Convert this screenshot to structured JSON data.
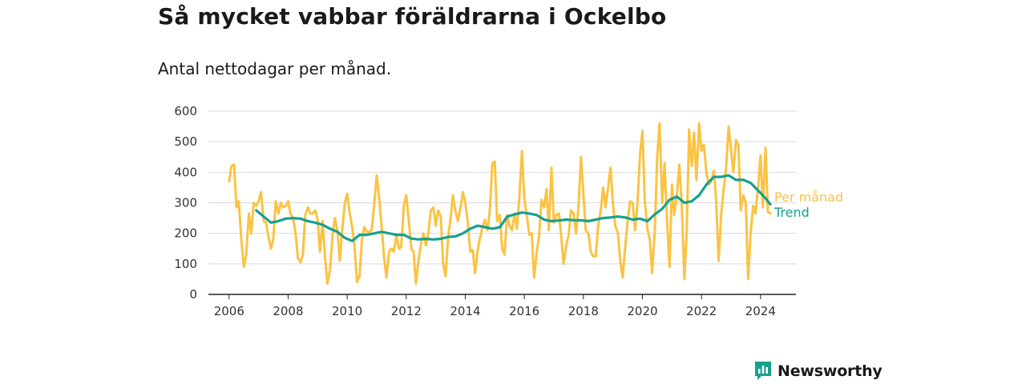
{
  "title": "Så mycket vabbar föräldrarna i Ockelbo",
  "subtitle": "Antal nettodagar per månad.",
  "colors": {
    "monthly": "#fbc343",
    "trend": "#17a08e",
    "grid": "#d9d9d9",
    "axis": "#222222",
    "brand": "#17a08e"
  },
  "brand": {
    "name": "Newsworthy",
    "icon": "bar-chart-speech-bubble-icon"
  },
  "chart_data": {
    "type": "line",
    "ylim": [
      0,
      600
    ],
    "xlim": [
      2005.3,
      2025.2
    ],
    "yticks": [
      0,
      100,
      200,
      300,
      400,
      500,
      600
    ],
    "xticks": [
      2006,
      2008,
      2010,
      2012,
      2014,
      2016,
      2018,
      2020,
      2022,
      2024
    ],
    "grid": true,
    "legend": "inline-right",
    "series": [
      {
        "name": "Per månad",
        "key": "monthly",
        "x": [
          2006.0,
          2006.08,
          2006.17,
          2006.25,
          2006.33,
          2006.42,
          2006.5,
          2006.58,
          2006.67,
          2006.75,
          2006.83,
          2006.92,
          2007.0,
          2007.08,
          2007.17,
          2007.25,
          2007.33,
          2007.42,
          2007.5,
          2007.58,
          2007.67,
          2007.75,
          2007.83,
          2007.92,
          2008.0,
          2008.08,
          2008.17,
          2008.25,
          2008.33,
          2008.42,
          2008.5,
          2008.58,
          2008.67,
          2008.75,
          2008.83,
          2008.92,
          2009.0,
          2009.08,
          2009.17,
          2009.25,
          2009.33,
          2009.42,
          2009.5,
          2009.58,
          2009.67,
          2009.75,
          2009.83,
          2009.92,
          2010.0,
          2010.08,
          2010.17,
          2010.25,
          2010.33,
          2010.42,
          2010.5,
          2010.58,
          2010.67,
          2010.75,
          2010.83,
          2010.92,
          2011.0,
          2011.08,
          2011.17,
          2011.25,
          2011.33,
          2011.42,
          2011.5,
          2011.58,
          2011.67,
          2011.75,
          2011.83,
          2011.92,
          2012.0,
          2012.08,
          2012.17,
          2012.25,
          2012.33,
          2012.42,
          2012.5,
          2012.58,
          2012.67,
          2012.75,
          2012.83,
          2012.92,
          2013.0,
          2013.08,
          2013.17,
          2013.25,
          2013.33,
          2013.42,
          2013.5,
          2013.58,
          2013.67,
          2013.75,
          2013.83,
          2013.92,
          2014.0,
          2014.08,
          2014.17,
          2014.25,
          2014.33,
          2014.42,
          2014.5,
          2014.58,
          2014.67,
          2014.75,
          2014.83,
          2014.92,
          2015.0,
          2015.08,
          2015.17,
          2015.25,
          2015.33,
          2015.42,
          2015.5,
          2015.58,
          2015.67,
          2015.75,
          2015.83,
          2015.92,
          2016.0,
          2016.08,
          2016.17,
          2016.25,
          2016.33,
          2016.42,
          2016.5,
          2016.58,
          2016.67,
          2016.75,
          2016.83,
          2016.92,
          2017.0,
          2017.08,
          2017.17,
          2017.25,
          2017.33,
          2017.42,
          2017.5,
          2017.58,
          2017.67,
          2017.75,
          2017.83,
          2017.92,
          2018.0,
          2018.08,
          2018.17,
          2018.25,
          2018.33,
          2018.42,
          2018.5,
          2018.58,
          2018.67,
          2018.75,
          2018.83,
          2018.92,
          2019.0,
          2019.08,
          2019.17,
          2019.25,
          2019.33,
          2019.42,
          2019.5,
          2019.58,
          2019.67,
          2019.75,
          2019.83,
          2019.92,
          2020.0,
          2020.08,
          2020.17,
          2020.25,
          2020.33,
          2020.42,
          2020.5,
          2020.58,
          2020.67,
          2020.75,
          2020.83,
          2020.92,
          2021.0,
          2021.08,
          2021.17,
          2021.25,
          2021.33,
          2021.42,
          2021.5,
          2021.58,
          2021.67,
          2021.75,
          2021.83,
          2021.92,
          2022.0,
          2022.08,
          2022.17,
          2022.25,
          2022.33,
          2022.42,
          2022.5,
          2022.58,
          2022.67,
          2022.75,
          2022.83,
          2022.92,
          2023.0,
          2023.08,
          2023.17,
          2023.25,
          2023.33,
          2023.42,
          2023.5,
          2023.58,
          2023.67,
          2023.75,
          2023.83,
          2023.92,
          2024.0,
          2024.08,
          2024.17,
          2024.25,
          2024.33
        ],
        "y": [
          370,
          420,
          425,
          285,
          305,
          170,
          90,
          130,
          265,
          200,
          300,
          290,
          305,
          335,
          240,
          235,
          190,
          150,
          185,
          305,
          265,
          300,
          285,
          290,
          305,
          265,
          250,
          200,
          120,
          105,
          130,
          260,
          285,
          265,
          265,
          275,
          245,
          140,
          240,
          120,
          35,
          80,
          190,
          250,
          210,
          110,
          210,
          300,
          330,
          270,
          220,
          160,
          40,
          60,
          180,
          220,
          205,
          205,
          210,
          300,
          390,
          320,
          220,
          120,
          55,
          140,
          150,
          140,
          195,
          150,
          155,
          290,
          325,
          250,
          150,
          140,
          35,
          115,
          165,
          200,
          160,
          200,
          275,
          285,
          225,
          275,
          255,
          100,
          60,
          190,
          245,
          325,
          270,
          240,
          280,
          335,
          300,
          240,
          140,
          145,
          70,
          145,
          185,
          220,
          245,
          210,
          275,
          430,
          435,
          240,
          260,
          150,
          130,
          260,
          225,
          210,
          265,
          215,
          315,
          470,
          315,
          260,
          195,
          200,
          55,
          140,
          190,
          310,
          285,
          345,
          210,
          415,
          235,
          260,
          265,
          190,
          100,
          160,
          195,
          275,
          265,
          200,
          280,
          450,
          330,
          210,
          200,
          140,
          125,
          125,
          225,
          270,
          350,
          285,
          345,
          415,
          300,
          225,
          200,
          110,
          55,
          160,
          240,
          305,
          300,
          210,
          295,
          460,
          535,
          310,
          215,
          180,
          70,
          210,
          450,
          560,
          300,
          430,
          250,
          90,
          360,
          260,
          330,
          425,
          295,
          50,
          205,
          540,
          420,
          530,
          375,
          560,
          470,
          490,
          395,
          360,
          370,
          405,
          305,
          110,
          265,
          345,
          410,
          550,
          475,
          400,
          505,
          490,
          275,
          325,
          300,
          50,
          205,
          290,
          265,
          355,
          455,
          285,
          480,
          270,
          265
        ]
      },
      {
        "name": "Trend",
        "key": "trend",
        "x": [
          2006.92,
          2007.17,
          2007.42,
          2007.67,
          2007.92,
          2008.17,
          2008.42,
          2008.67,
          2008.92,
          2009.17,
          2009.42,
          2009.67,
          2009.92,
          2010.17,
          2010.42,
          2010.67,
          2010.92,
          2011.17,
          2011.42,
          2011.67,
          2011.92,
          2012.17,
          2012.42,
          2012.67,
          2012.92,
          2013.17,
          2013.42,
          2013.67,
          2013.92,
          2014.17,
          2014.42,
          2014.67,
          2014.92,
          2015.17,
          2015.42,
          2015.67,
          2015.92,
          2016.17,
          2016.42,
          2016.67,
          2016.92,
          2017.17,
          2017.42,
          2017.67,
          2017.92,
          2018.17,
          2018.42,
          2018.67,
          2018.92,
          2019.17,
          2019.42,
          2019.67,
          2019.92,
          2020.17,
          2020.42,
          2020.67,
          2020.92,
          2021.17,
          2021.42,
          2021.67,
          2021.92,
          2022.17,
          2022.42,
          2022.67,
          2022.92,
          2023.17,
          2023.42,
          2023.67,
          2023.92,
          2024.17,
          2024.33
        ],
        "y": [
          275,
          255,
          235,
          240,
          248,
          250,
          248,
          240,
          235,
          228,
          215,
          205,
          185,
          175,
          195,
          195,
          200,
          205,
          200,
          195,
          195,
          183,
          180,
          182,
          180,
          182,
          188,
          190,
          200,
          215,
          225,
          220,
          215,
          220,
          255,
          262,
          268,
          265,
          260,
          245,
          240,
          242,
          245,
          243,
          243,
          240,
          245,
          250,
          252,
          255,
          252,
          245,
          248,
          240,
          262,
          280,
          310,
          320,
          300,
          305,
          325,
          360,
          385,
          385,
          390,
          375,
          375,
          365,
          340,
          315,
          295
        ]
      }
    ]
  }
}
